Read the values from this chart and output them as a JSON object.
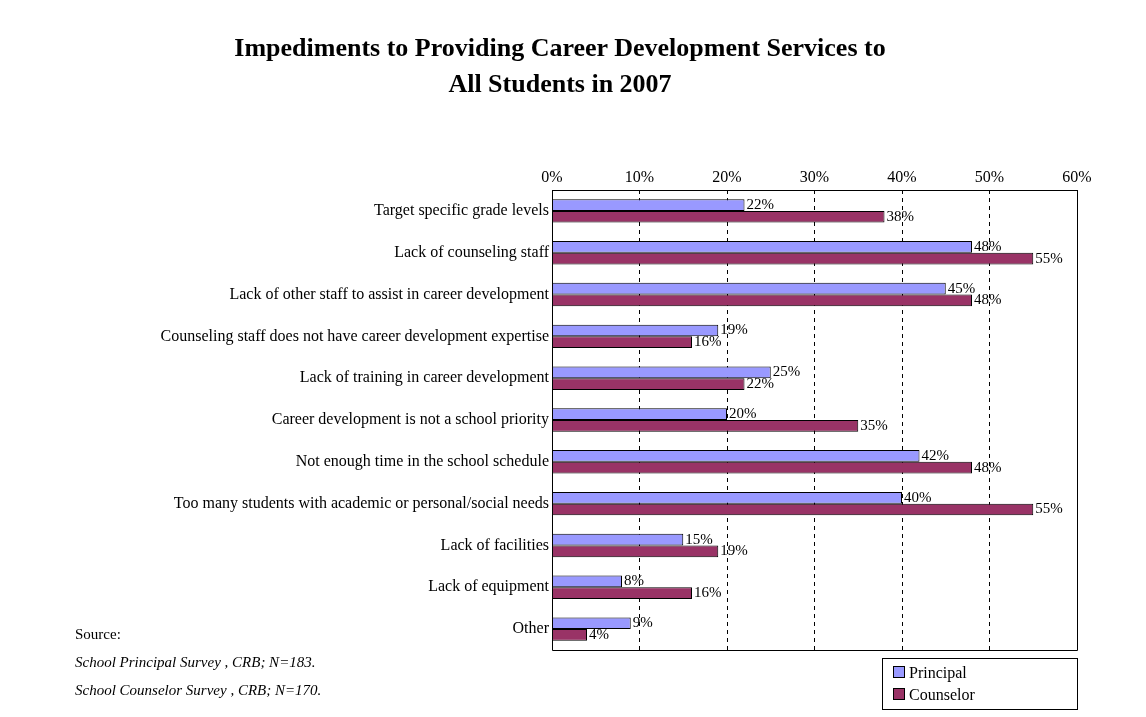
{
  "chart_data": {
    "type": "bar",
    "orientation": "horizontal",
    "title": "Impediments to Providing Career Development Services to All Students in 2007",
    "categories": [
      "Target specific grade levels",
      "Lack of counseling staff",
      "Lack of other staff to assist in career development",
      "Counseling staff does not have career development expertise",
      "Lack of training in career development",
      "Career development is not a school priority",
      "Not enough time in the school schedule",
      "Too many students with academic or personal/social needs",
      "Lack of facilities",
      "Lack of equipment",
      "Other"
    ],
    "series": [
      {
        "name": "Principal",
        "color": "#9999ff",
        "values": [
          22,
          48,
          45,
          19,
          25,
          20,
          42,
          40,
          15,
          8,
          9
        ],
        "value_labels": [
          "22%",
          "48%",
          "45%",
          "19%",
          "25%",
          "20%",
          "42%",
          "40%",
          "15%",
          "8%",
          "9%"
        ]
      },
      {
        "name": "Counselor",
        "color": "#993366",
        "values": [
          38,
          55,
          48,
          16,
          22,
          35,
          48,
          55,
          19,
          16,
          4
        ],
        "value_labels": [
          "38%",
          "55%",
          "48%",
          "16%",
          "22%",
          "35%",
          "48%",
          "55%",
          "19%",
          "16%",
          "4%"
        ]
      }
    ],
    "xlim": [
      0,
      60
    ],
    "xticks": [
      {
        "value": 0,
        "label": "0%"
      },
      {
        "value": 10,
        "label": "10%"
      },
      {
        "value": 20,
        "label": "20%"
      },
      {
        "value": 30,
        "label": "30%"
      },
      {
        "value": 40,
        "label": "40%"
      },
      {
        "value": 50,
        "label": "50%"
      },
      {
        "value": 60,
        "label": "60%"
      }
    ],
    "grid": "x",
    "line_style": "dashed",
    "legend": "bottom right",
    "annotations": [
      "Source:",
      "School Principal Survey , CRB; N=183.",
      "School Counselor Survey , CRB; N=170."
    ]
  }
}
